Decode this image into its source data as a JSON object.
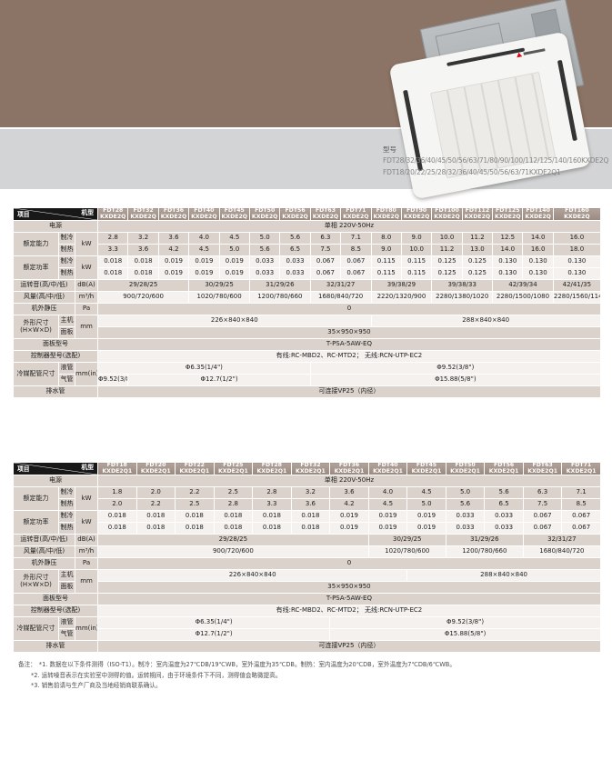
{
  "banner": {
    "model_label": "型号",
    "line1": "FDT28/32/36/40/45/50/56/63/71/80/90/100/112/125/140/160KXDE2Q",
    "line2": "FDT18/20/22/25/28/32/36/40/45/50/56/63/71KXDE2Q1"
  },
  "row_labels": {
    "item": "项目",
    "model": "机型",
    "power": "电源",
    "capacity": "额定能力",
    "input": "额定功率",
    "cooling": "制冷",
    "heating": "制热",
    "kw": "kW",
    "noise": "运转音(高/中/低)",
    "noise_unit": "dB(A)",
    "airflow": "风量(高/中/低)",
    "airflow_unit": "m³/h",
    "esp": "机外静压",
    "esp_unit": "Pa",
    "dims": "外形尺寸",
    "dims2": "(H×W×D)",
    "main": "主机",
    "panel": "面板",
    "mm": "mm",
    "panel_model": "面板型号",
    "controller": "控制器型号(选配)",
    "pipes": "冷媒配管尺寸",
    "liquid": "液管",
    "gas": "气管",
    "mmin": "mm(in)",
    "drain": "排水管"
  },
  "table1": {
    "model_suffix": "KXDE2Q",
    "model_names": [
      "FDT28",
      "FDT32",
      "FDT36",
      "FDT40",
      "FDT45",
      "FDT50",
      "FDT56",
      "FDT63",
      "FDT71",
      "FDT80",
      "FDT90",
      "FDT100",
      "FDT112",
      "FDT125",
      "FDT140",
      "FDT160"
    ],
    "power": "单相 220V-50Hz",
    "cooling_capacity": [
      "2.8",
      "3.2",
      "3.6",
      "4.0",
      "4.5",
      "5.0",
      "5.6",
      "6.3",
      "7.1",
      "8.0",
      "9.0",
      "10.0",
      "11.2",
      "12.5",
      "14.0",
      "16.0"
    ],
    "heating_capacity": [
      "3.3",
      "3.6",
      "4.2",
      "4.5",
      "5.0",
      "5.6",
      "6.5",
      "7.5",
      "8.5",
      "9.0",
      "10.0",
      "11.2",
      "13.0",
      "14.0",
      "16.0",
      "18.0"
    ],
    "cooling_input": [
      "0.018",
      "0.018",
      "0.019",
      "0.019",
      "0.019",
      "0.033",
      "0.033",
      "0.067",
      "0.067",
      "0.115",
      "0.115",
      "0.125",
      "0.125",
      "0.130",
      "0.130",
      "0.130"
    ],
    "heating_input": [
      "0.018",
      "0.018",
      "0.019",
      "0.019",
      "0.019",
      "0.033",
      "0.033",
      "0.067",
      "0.067",
      "0.115",
      "0.115",
      "0.125",
      "0.125",
      "0.130",
      "0.130",
      "0.130"
    ],
    "noise": [
      {
        "span": 3,
        "value": "29/28/25"
      },
      {
        "span": 2,
        "value": "30/29/25"
      },
      {
        "span": 2,
        "value": "31/29/26"
      },
      {
        "span": 2,
        "value": "32/31/27"
      },
      {
        "span": 2,
        "value": "39/38/29"
      },
      {
        "span": 2,
        "value": "39/38/33"
      },
      {
        "span": 2,
        "value": "42/39/34"
      },
      {
        "span": 1,
        "value": "42/41/35"
      }
    ],
    "airflow": [
      {
        "span": 3,
        "value": "900/720/600"
      },
      {
        "span": 2,
        "value": "1020/780/600"
      },
      {
        "span": 2,
        "value": "1200/780/660"
      },
      {
        "span": 2,
        "value": "1680/840/720"
      },
      {
        "span": 2,
        "value": "2220/1320/900"
      },
      {
        "span": 2,
        "value": "2280/1380/1020"
      },
      {
        "span": 2,
        "value": "2280/1500/1080"
      },
      {
        "span": 1,
        "value": "2280/1560/1140"
      }
    ],
    "esp": "0",
    "main_dims": [
      {
        "span": 9,
        "value": "226×840×840"
      },
      {
        "span": 7,
        "value": "288×840×840"
      }
    ],
    "panel_dims": "35×950×950",
    "panel_model": "T-PSA-5AW-EQ",
    "controller": "有线:RC-MBD2、RC-MTD2；  无线:RCN-UTP-EC2",
    "liquid_pipe": [
      {
        "span": 7,
        "value": "Φ6.35(1/4\")"
      },
      {
        "span": 9,
        "value": "Φ9.52(3/8\")"
      }
    ],
    "gas_pipe": [
      {
        "span": 1,
        "value": "Φ9.52(3/8\")"
      },
      {
        "span": 6,
        "value": "Φ12.7(1/2\")"
      },
      {
        "span": 9,
        "value": "Φ15.88(5/8\")"
      }
    ],
    "drain": "可连接VP25（内径）"
  },
  "table2": {
    "model_suffix": "KXDE2Q1",
    "model_names": [
      "FDT18",
      "FDT20",
      "FDT22",
      "FDT25",
      "FDT28",
      "FDT32",
      "FDT36",
      "FDT40",
      "FDT45",
      "FDT50",
      "FDT56",
      "FDT63",
      "FDT71"
    ],
    "power": "单相 220V-50Hz",
    "cooling_capacity": [
      "1.8",
      "2.0",
      "2.2",
      "2.5",
      "2.8",
      "3.2",
      "3.6",
      "4.0",
      "4.5",
      "5.0",
      "5.6",
      "6.3",
      "7.1"
    ],
    "heating_capacity": [
      "2.0",
      "2.2",
      "2.5",
      "2.8",
      "3.3",
      "3.6",
      "4.2",
      "4.5",
      "5.0",
      "5.6",
      "6.5",
      "7.5",
      "8.5"
    ],
    "cooling_input": [
      "0.018",
      "0.018",
      "0.018",
      "0.018",
      "0.018",
      "0.018",
      "0.019",
      "0.019",
      "0.019",
      "0.033",
      "0.033",
      "0.067",
      "0.067"
    ],
    "heating_input": [
      "0.018",
      "0.018",
      "0.018",
      "0.018",
      "0.018",
      "0.018",
      "0.019",
      "0.019",
      "0.019",
      "0.033",
      "0.033",
      "0.067",
      "0.067"
    ],
    "noise": [
      {
        "span": 7,
        "value": "29/28/25"
      },
      {
        "span": 2,
        "value": "30/29/25"
      },
      {
        "span": 2,
        "value": "31/29/26"
      },
      {
        "span": 2,
        "value": "32/31/27"
      }
    ],
    "airflow": [
      {
        "span": 7,
        "value": "900/720/600"
      },
      {
        "span": 2,
        "value": "1020/780/600"
      },
      {
        "span": 2,
        "value": "1200/780/660"
      },
      {
        "span": 2,
        "value": "1680/840/720"
      }
    ],
    "esp": "0",
    "main_dims": [
      {
        "span": 8,
        "value": "226×840×840"
      },
      {
        "span": 5,
        "value": "288×840×840"
      }
    ],
    "panel_dims": "35×950×950",
    "panel_model": "T-PSA-5AW-EQ",
    "controller": "有线:RC-MBD2、RC-MTD2；  无线:RCN-UTP-EC2",
    "liquid_pipe": [
      {
        "span": 6,
        "value": "Φ6.35(1/4\")"
      },
      {
        "span": 7,
        "value": "Φ9.52(3/8\")"
      }
    ],
    "gas_pipe": [
      {
        "span": 6,
        "value": "Φ12.7(1/2\")"
      },
      {
        "span": 7,
        "value": "Φ15.88(5/8\")"
      }
    ],
    "drain": "可连接VP25（内径）"
  },
  "notes": {
    "prefix": "备注：",
    "items": [
      "*1. 数据在以下条件测得（ISO-T1）。制冷：室内温度为27℃DB/19℃WB，室外温度为35℃DB。制热：室内温度为20℃DB，室外温度为7℃DB/6℃WB。",
      "*2. 运转噪音表示在实验室中测得的值。运转期间，由于环境条件下不同，测得值会略微提高。",
      "*3. 销售前请与生产厂商及当地经销商联系确认。"
    ]
  }
}
